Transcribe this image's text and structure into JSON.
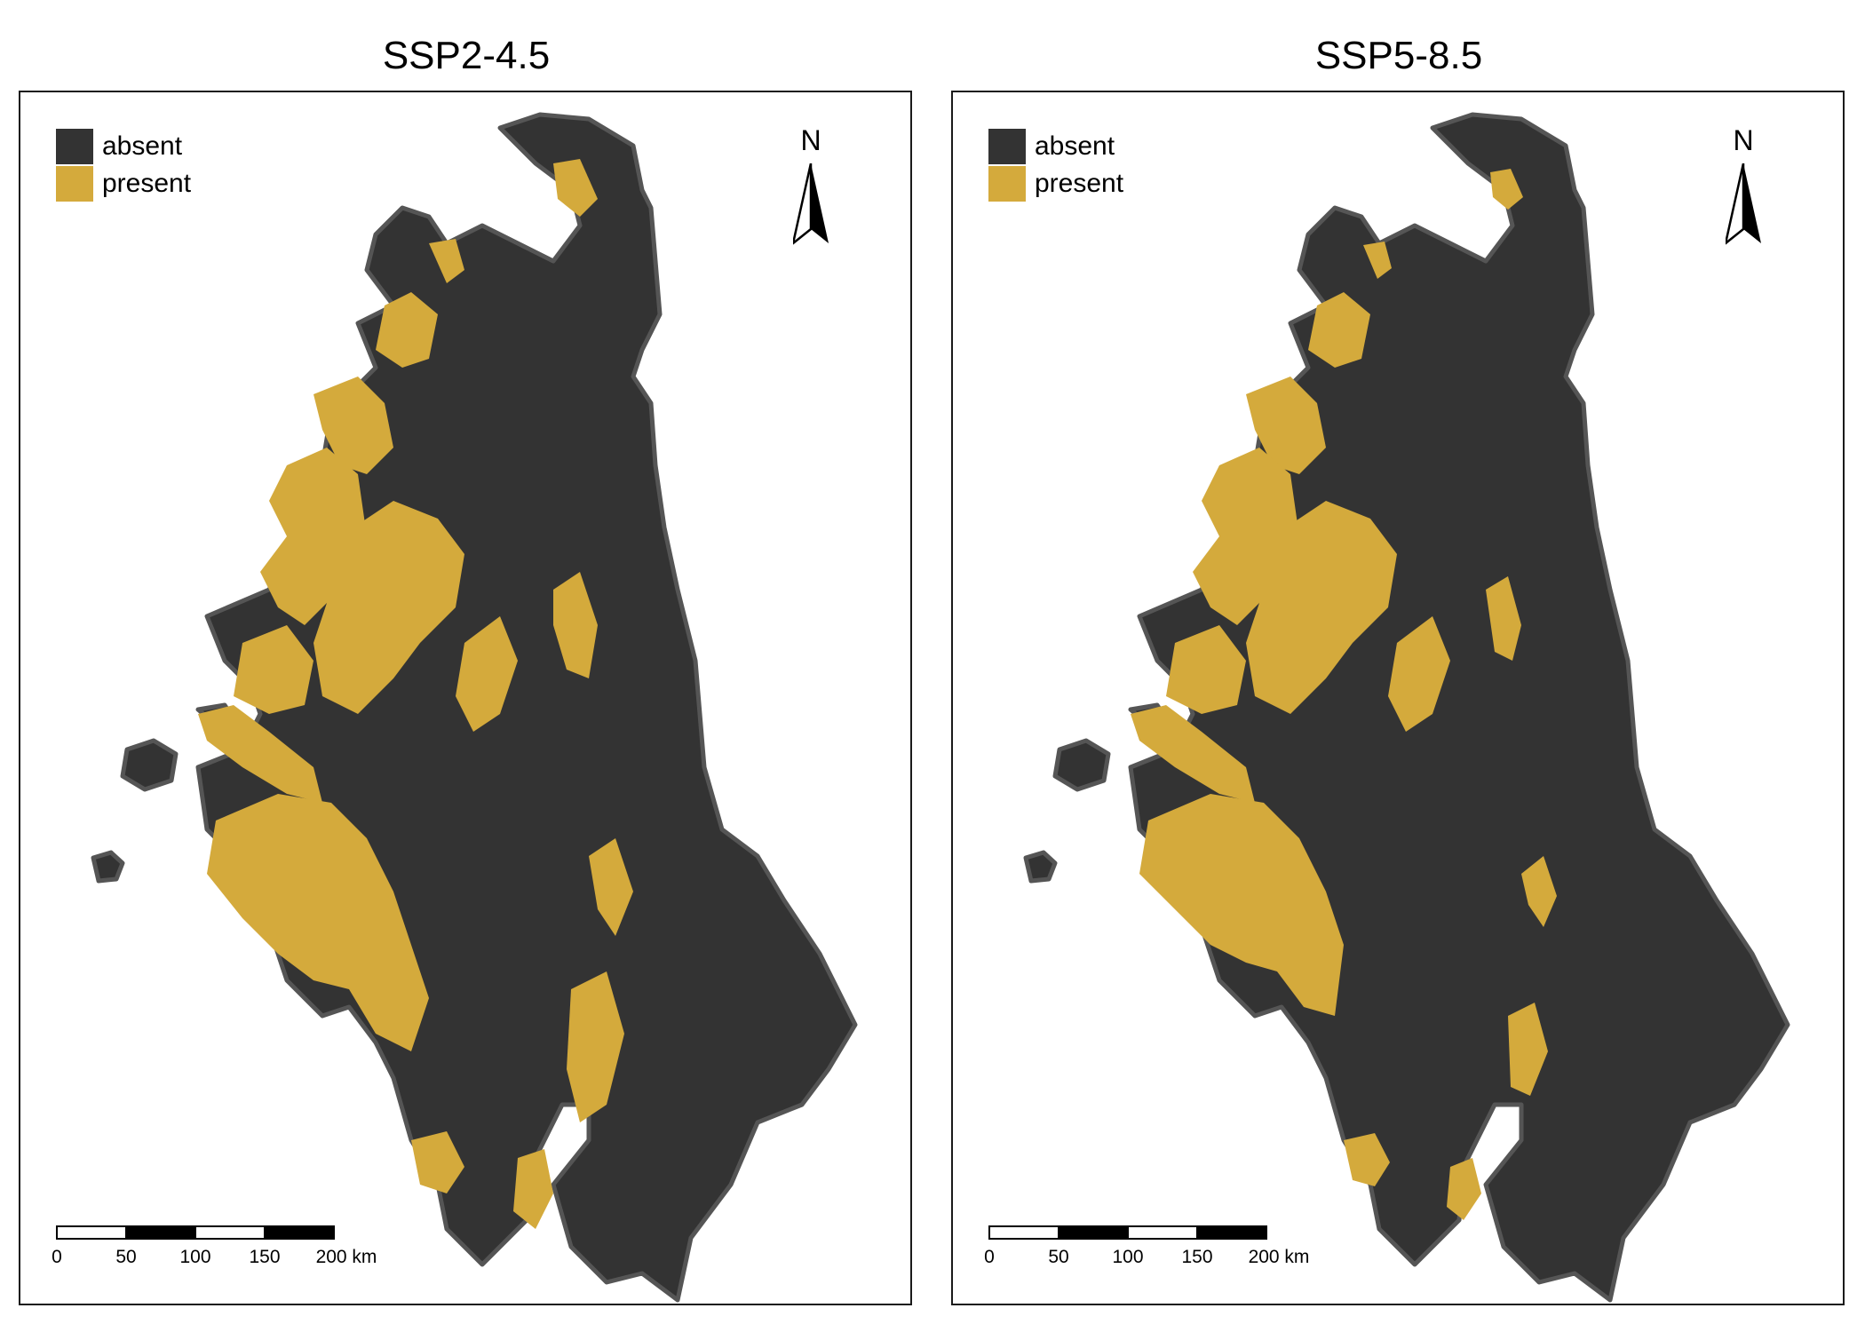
{
  "colors": {
    "absent": "#333333",
    "present": "#D4AA3C",
    "outline": "#555555"
  },
  "legend": [
    {
      "key": "absent",
      "label": "absent"
    },
    {
      "key": "present",
      "label": "present"
    }
  ],
  "north_label": "N",
  "scale": {
    "ticks": [
      "0",
      "50",
      "100",
      "150",
      "200 km"
    ]
  },
  "panels": [
    {
      "title": "SSP2-4.5"
    },
    {
      "title": "SSP5-8.5"
    }
  ]
}
